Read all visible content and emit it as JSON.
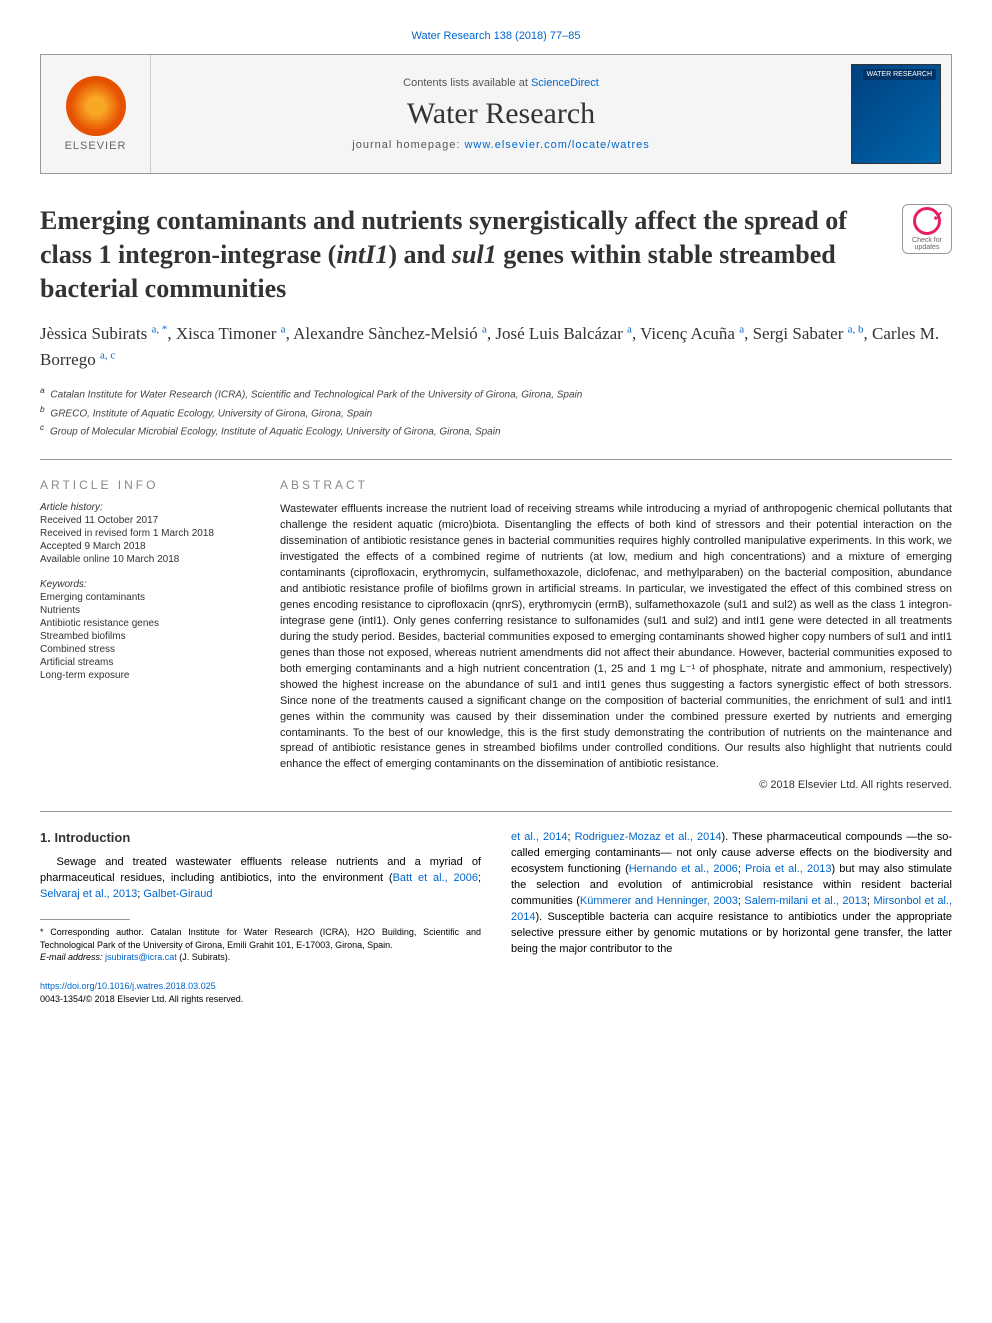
{
  "journal_ref": "Water Research 138 (2018) 77–85",
  "header": {
    "contents_prefix": "Contents lists available at ",
    "contents_link": "ScienceDirect",
    "journal_name": "Water Research",
    "homepage_prefix": "journal homepage: ",
    "homepage_url": "www.elsevier.com/locate/watres",
    "publisher": "ELSEVIER",
    "cover_label": "WATER RESEARCH"
  },
  "check_badge": "Check for updates",
  "title": "Emerging contaminants and nutrients synergistically affect the spread of class 1 integron-integrase (intI1) and sul1 genes within stable streambed bacterial communities",
  "authors_html": "Jèssica Subirats <sup>a, *</sup>, Xisca Timoner <sup>a</sup>, Alexandre Sànchez-Melsió <sup>a</sup>, José Luis Balcázar <sup>a</sup>, Vicenç Acuña <sup>a</sup>, Sergi Sabater <sup>a, b</sup>, Carles M. Borrego <sup>a, c</sup>",
  "affiliations": [
    {
      "sup": "a",
      "text": "Catalan Institute for Water Research (ICRA), Scientific and Technological Park of the University of Girona, Girona, Spain"
    },
    {
      "sup": "b",
      "text": "GRECO, Institute of Aquatic Ecology, University of Girona, Girona, Spain"
    },
    {
      "sup": "c",
      "text": "Group of Molecular Microbial Ecology, Institute of Aquatic Ecology, University of Girona, Girona, Spain"
    }
  ],
  "article_info": {
    "heading": "ARTICLE INFO",
    "history_label": "Article history:",
    "received": "Received 11 October 2017",
    "revised": "Received in revised form 1 March 2018",
    "accepted": "Accepted 9 March 2018",
    "online": "Available online 10 March 2018",
    "keywords_label": "Keywords:",
    "keywords": [
      "Emerging contaminants",
      "Nutrients",
      "Antibiotic resistance genes",
      "Streambed biofilms",
      "Combined stress",
      "Artificial streams",
      "Long-term exposure"
    ]
  },
  "abstract": {
    "heading": "ABSTRACT",
    "text": "Wastewater effluents increase the nutrient load of receiving streams while introducing a myriad of anthropogenic chemical pollutants that challenge the resident aquatic (micro)biota. Disentangling the effects of both kind of stressors and their potential interaction on the dissemination of antibiotic resistance genes in bacterial communities requires highly controlled manipulative experiments. In this work, we investigated the effects of a combined regime of nutrients (at low, medium and high concentrations) and a mixture of emerging contaminants (ciprofloxacin, erythromycin, sulfamethoxazole, diclofenac, and methylparaben) on the bacterial composition, abundance and antibiotic resistance profile of biofilms grown in artificial streams. In particular, we investigated the effect of this combined stress on genes encoding resistance to ciprofloxacin (qnrS), erythromycin (ermB), sulfamethoxazole (sul1 and sul2) as well as the class 1 integron-integrase gene (intI1). Only genes conferring resistance to sulfonamides (sul1 and sul2) and intI1 gene were detected in all treatments during the study period. Besides, bacterial communities exposed to emerging contaminants showed higher copy numbers of sul1 and intI1 genes than those not exposed, whereas nutrient amendments did not affect their abundance. However, bacterial communities exposed to both emerging contaminants and a high nutrient concentration (1, 25 and 1 mg L⁻¹ of phosphate, nitrate and ammonium, respectively) showed the highest increase on the abundance of sul1 and intI1 genes thus suggesting a factors synergistic effect of both stressors. Since none of the treatments caused a significant change on the composition of bacterial communities, the enrichment of sul1 and intI1 genes within the community was caused by their dissemination under the combined pressure exerted by nutrients and emerging contaminants. To the best of our knowledge, this is the first study demonstrating the contribution of nutrients on the maintenance and spread of antibiotic resistance genes in streambed biofilms under controlled conditions. Our results also highlight that nutrients could enhance the effect of emerging contaminants on the dissemination of antibiotic resistance.",
    "copyright": "© 2018 Elsevier Ltd. All rights reserved."
  },
  "intro": {
    "heading": "1. Introduction",
    "col1": "Sewage and treated wastewater effluents release nutrients and a myriad of pharmaceutical residues, including antibiotics, into the environment (Batt et al., 2006; Selvaraj et al., 2013; Galbet-Giraud",
    "col2": "et al., 2014; Rodriguez-Mozaz et al., 2014). These pharmaceutical compounds —the so-called emerging contaminants— not only cause adverse effects on the biodiversity and ecosystem functioning (Hernando et al., 2006; Proia et al., 2013) but may also stimulate the selection and evolution of antimicrobial resistance within resident bacterial communities (Kümmerer and Henninger, 2003; Salem-milani et al., 2013; Mirsonbol et al., 2014). Susceptible bacteria can acquire resistance to antibiotics under the appropriate selective pressure either by genomic mutations or by horizontal gene transfer, the latter being the major contributor to the"
  },
  "footnote": {
    "corresponding": "* Corresponding author. Catalan Institute for Water Research (ICRA), H2O Building, Scientific and Technological Park of the University of Girona, Emili Grahit 101, E-17003, Girona, Spain.",
    "email_label": "E-mail address:",
    "email": "jsubirats@icra.cat",
    "email_name": "(J. Subirats)."
  },
  "footer": {
    "doi": "https://doi.org/10.1016/j.watres.2018.03.025",
    "issn": "0043-1354/© 2018 Elsevier Ltd. All rights reserved."
  },
  "colors": {
    "link": "#0066cc",
    "border": "#999999",
    "heading": "#888888",
    "text": "#222222"
  }
}
